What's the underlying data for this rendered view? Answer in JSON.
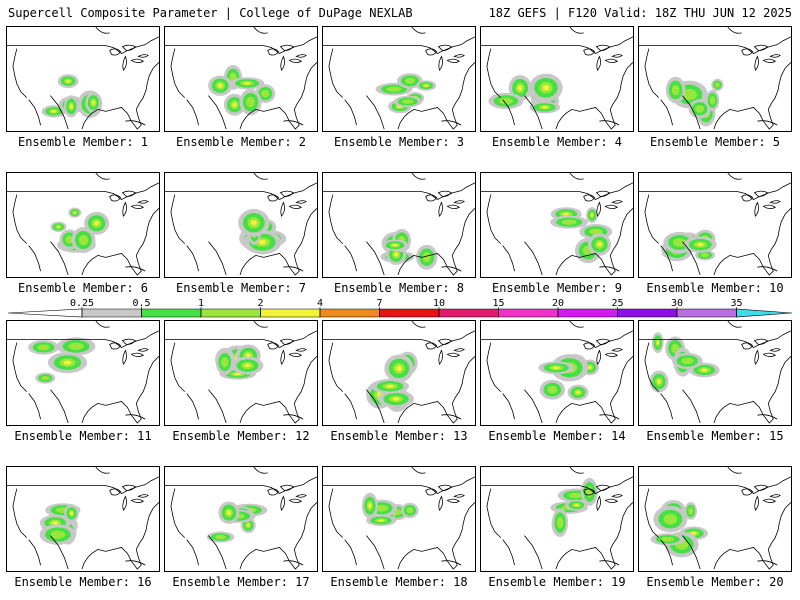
{
  "header": {
    "left": "Supercell Composite Parameter | College of DuPage NEXLAB",
    "right": "18Z GEFS | F120 Valid: 18Z THU JUN 12 2025"
  },
  "panels": [
    {
      "label": "Ensemble Member: 1"
    },
    {
      "label": "Ensemble Member: 2"
    },
    {
      "label": "Ensemble Member: 3"
    },
    {
      "label": "Ensemble Member: 4"
    },
    {
      "label": "Ensemble Member: 5"
    },
    {
      "label": "Ensemble Member: 6"
    },
    {
      "label": "Ensemble Member: 7"
    },
    {
      "label": "Ensemble Member: 8"
    },
    {
      "label": "Ensemble Member: 9"
    },
    {
      "label": "Ensemble Member: 10"
    },
    {
      "label": "Ensemble Member: 11"
    },
    {
      "label": "Ensemble Member: 12"
    },
    {
      "label": "Ensemble Member: 13"
    },
    {
      "label": "Ensemble Member: 14"
    },
    {
      "label": "Ensemble Member: 15"
    },
    {
      "label": "Ensemble Member: 16"
    },
    {
      "label": "Ensemble Member: 17"
    },
    {
      "label": "Ensemble Member: 18"
    },
    {
      "label": "Ensemble Member: 19"
    },
    {
      "label": "Ensemble Member: 20"
    }
  ],
  "colorbar": {
    "ticks": [
      "0.25",
      "0.5",
      "1",
      "2",
      "4",
      "7",
      "10",
      "15",
      "20",
      "25",
      "30",
      "35"
    ],
    "colors": [
      "#c8c8c8",
      "#44e044",
      "#9ae63c",
      "#f2f238",
      "#f08a1e",
      "#e61414",
      "#e01a6e",
      "#ee32c8",
      "#d21aee",
      "#8c10e6",
      "#b86ee0",
      "#40dcec"
    ]
  }
}
